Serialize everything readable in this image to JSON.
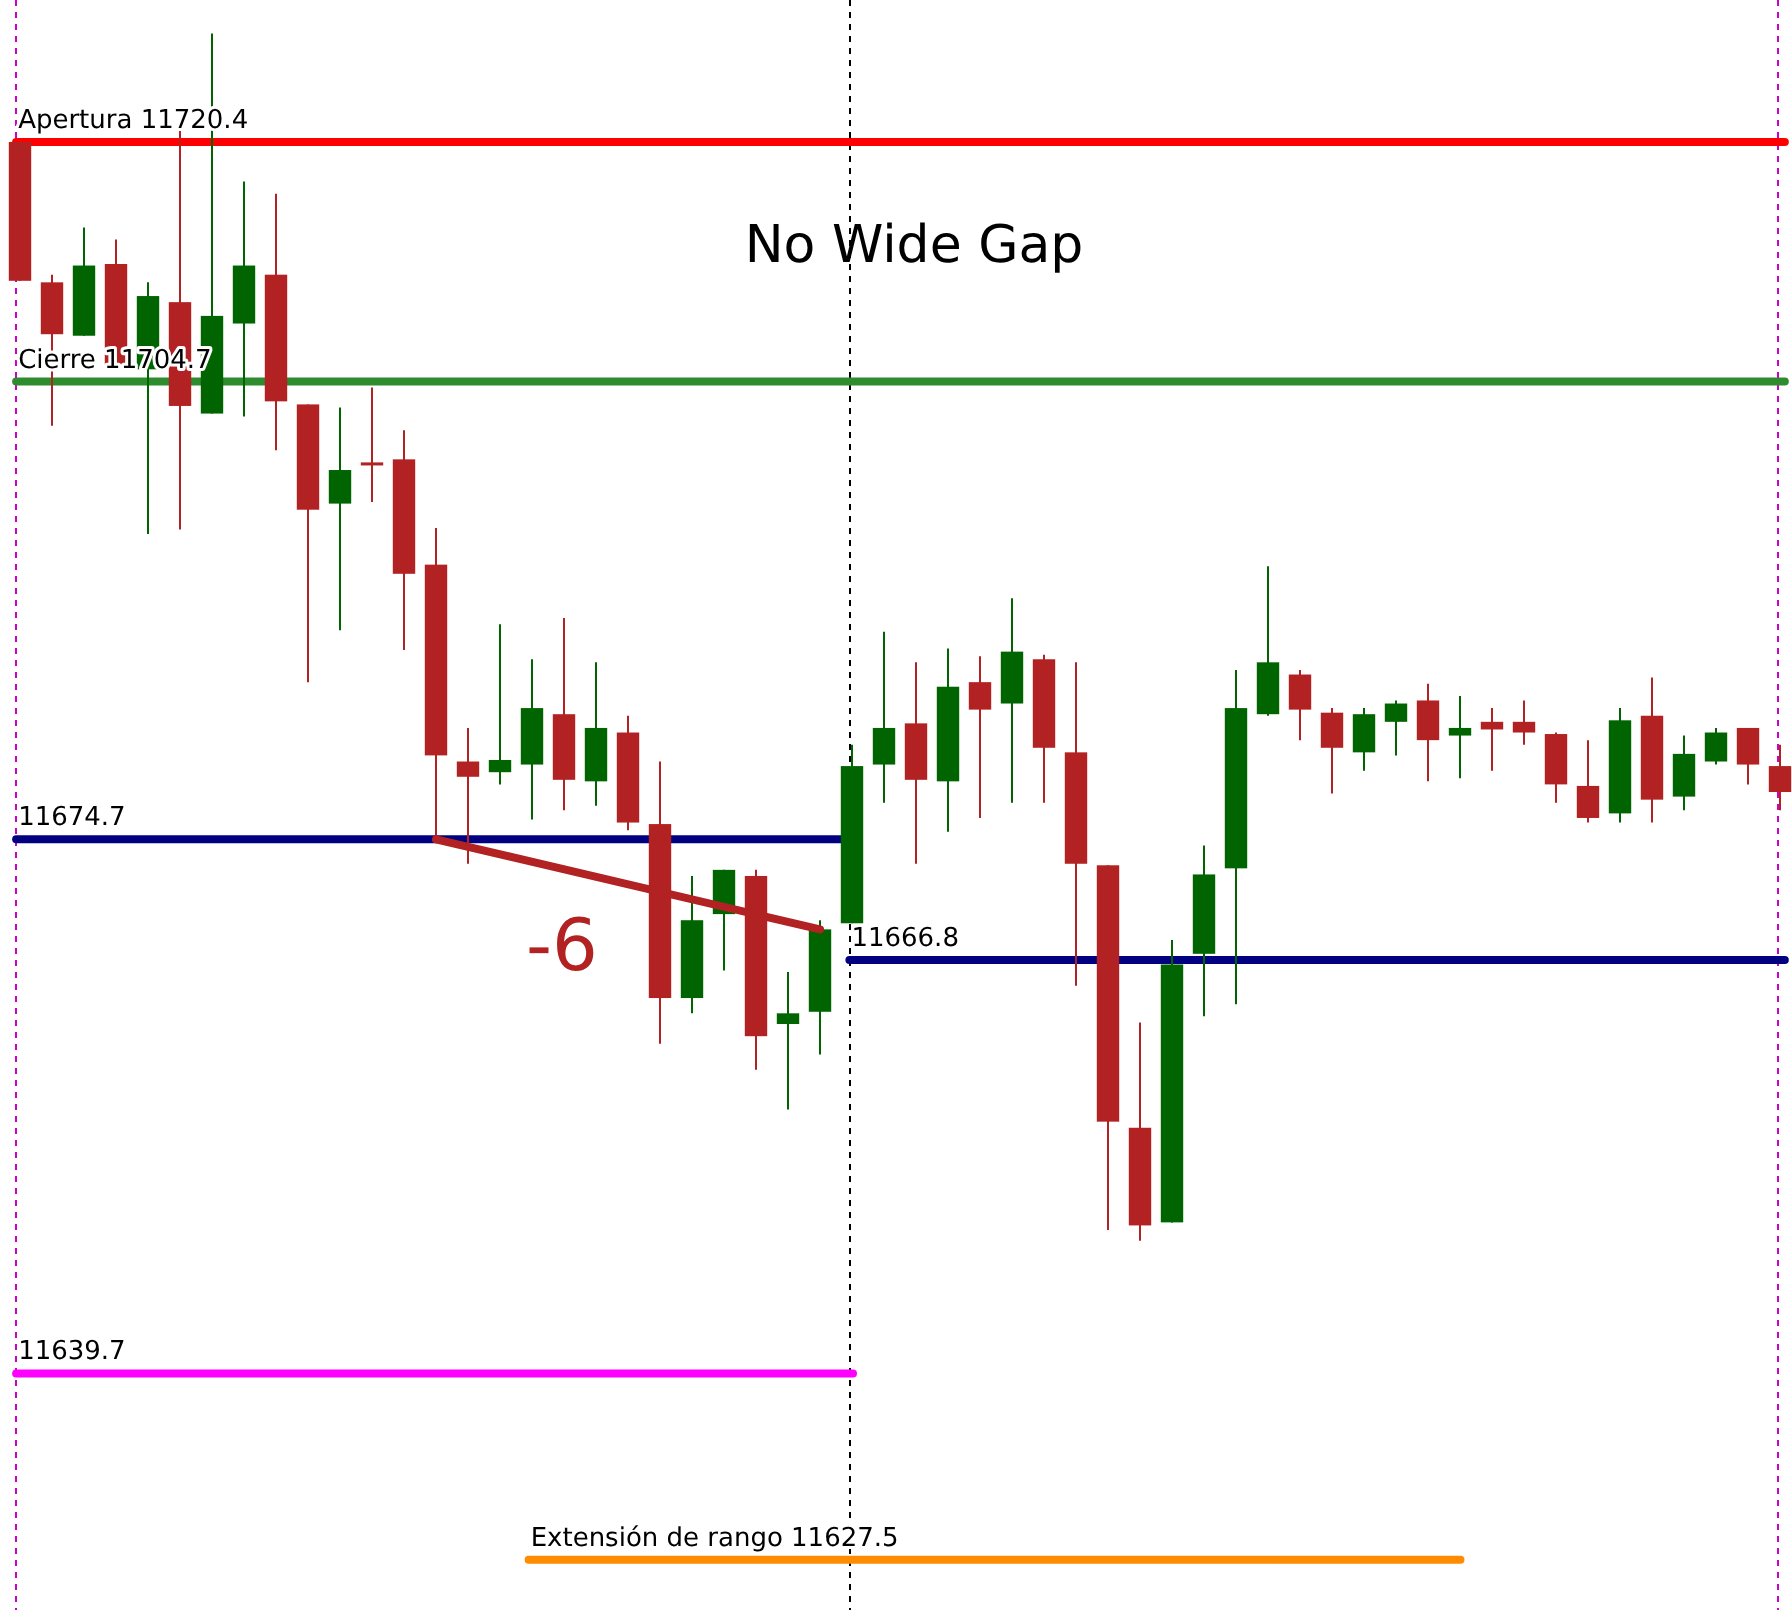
{
  "chart_data": {
    "type": "candlestick",
    "title": "No Wide Gap",
    "categories": [
      null,
      null,
      null,
      null,
      null,
      null,
      null,
      null,
      null,
      null,
      null,
      null,
      null,
      null,
      null,
      null,
      null,
      null,
      null,
      null,
      null,
      null,
      null,
      null,
      null,
      null,
      null,
      null,
      null,
      null,
      null,
      null,
      null,
      null,
      null,
      null,
      null,
      null,
      null,
      null,
      null,
      null,
      null,
      null,
      null,
      null,
      null,
      null,
      null,
      null,
      null,
      null,
      null,
      null,
      null,
      null
    ],
    "ohlc": [
      [
        11720.4,
        11720.4,
        11711.3,
        11711.3
      ],
      [
        11711.2,
        11711.7,
        11701.8,
        11707.8
      ],
      [
        11707.7,
        11714.8,
        11707.7,
        11712.3
      ],
      [
        11712.4,
        11714.0,
        11705.8,
        11705.8
      ],
      [
        11705.5,
        11711.2,
        11694.7,
        11710.3
      ],
      [
        11709.9,
        11721.2,
        11695.0,
        11703.1
      ],
      [
        11702.6,
        11727.5,
        11702.6,
        11709.0
      ],
      [
        11708.5,
        11717.8,
        11702.4,
        11712.3
      ],
      [
        11711.7,
        11717.0,
        11700.2,
        11703.4
      ],
      [
        11703.2,
        11703.2,
        11685.0,
        11696.3
      ],
      [
        11696.7,
        11703.0,
        11688.4,
        11698.9
      ],
      [
        11699.4,
        11704.3,
        11696.8,
        11699.2
      ],
      [
        11699.6,
        11701.5,
        11687.1,
        11692.1
      ],
      [
        11692.7,
        11695.1,
        11674.7,
        11680.2
      ],
      [
        11679.8,
        11682.0,
        11673.1,
        11678.8
      ],
      [
        11679.1,
        11688.8,
        11678.3,
        11679.9
      ],
      [
        11679.6,
        11686.5,
        11676.0,
        11683.3
      ],
      [
        11682.9,
        11689.2,
        11676.6,
        11678.6
      ],
      [
        11678.5,
        11686.3,
        11676.9,
        11682.0
      ],
      [
        11681.7,
        11682.8,
        11675.3,
        11675.8
      ],
      [
        11675.7,
        11679.8,
        11661.3,
        11664.3
      ],
      [
        11664.3,
        11672.3,
        11663.3,
        11669.4
      ],
      [
        11669.8,
        11672.7,
        11666.1,
        11672.7
      ],
      [
        11672.3,
        11672.7,
        11659.6,
        11661.8
      ],
      [
        11662.6,
        11666.0,
        11657.0,
        11663.3
      ],
      [
        11663.4,
        11669.4,
        11660.6,
        11668.8
      ],
      [
        11669.2,
        11680.9,
        11669.2,
        11679.5
      ],
      [
        11679.6,
        11688.3,
        11677.1,
        11682.0
      ],
      [
        11682.3,
        11686.3,
        11673.1,
        11678.6
      ],
      [
        11678.5,
        11687.2,
        11675.2,
        11684.7
      ],
      [
        11685.0,
        11686.7,
        11676.1,
        11683.2
      ],
      [
        11683.6,
        11690.5,
        11677.1,
        11687.0
      ],
      [
        11686.5,
        11686.8,
        11677.1,
        11680.7
      ],
      [
        11680.4,
        11686.3,
        11665.1,
        11673.1
      ],
      [
        11673.0,
        11673.0,
        11649.1,
        11656.2
      ],
      [
        11655.8,
        11662.7,
        11648.4,
        11649.4
      ],
      [
        11649.6,
        11668.1,
        11649.6,
        11666.5
      ],
      [
        11667.2,
        11674.3,
        11663.1,
        11672.4
      ],
      [
        11672.8,
        11685.8,
        11663.9,
        11683.3
      ],
      [
        11682.9,
        11692.6,
        11682.8,
        11686.3
      ],
      [
        11685.5,
        11685.8,
        11681.2,
        11683.2
      ],
      [
        11683.0,
        11683.3,
        11677.7,
        11680.7
      ],
      [
        11680.4,
        11683.3,
        11679.2,
        11682.9
      ],
      [
        11682.4,
        11683.8,
        11680.2,
        11683.6
      ],
      [
        11683.8,
        11684.9,
        11678.5,
        11681.2
      ],
      [
        11681.5,
        11684.1,
        11678.7,
        11682.0
      ],
      [
        11682.4,
        11683.3,
        11679.2,
        11681.9
      ],
      [
        11682.4,
        11683.8,
        11680.9,
        11681.7
      ],
      [
        11681.6,
        11681.7,
        11677.1,
        11678.3
      ],
      [
        11678.2,
        11681.2,
        11675.8,
        11676.1
      ],
      [
        11676.4,
        11683.3,
        11675.8,
        11682.5
      ],
      [
        11682.8,
        11685.3,
        11675.8,
        11677.3
      ],
      [
        11677.5,
        11681.5,
        11676.6,
        11680.3
      ],
      [
        11679.8,
        11682.0,
        11679.6,
        11681.7
      ],
      [
        11682.0,
        11682.0,
        11678.3,
        11679.6
      ],
      [
        11679.5,
        11680.9,
        11676.6,
        11677.8
      ]
    ],
    "ylim": [
      11624.2,
      11729.7
    ],
    "ref_lines": [
      {
        "axis": "y",
        "value": 11720.4,
        "label": "Apertura 11720.4",
        "color": "#ff0000"
      },
      {
        "axis": "y",
        "value": 11704.7,
        "label": "Cierre 11704.7",
        "color": "#2e8b2e"
      },
      {
        "axis": "y",
        "value": 11674.7,
        "label": "11674.7",
        "color": "#000080"
      },
      {
        "axis": "y",
        "value": 11666.8,
        "label": "11666.8",
        "color": "#000080"
      },
      {
        "axis": "y",
        "value": 11639.7,
        "label": "11639.7",
        "color": "#ff00ff"
      },
      {
        "axis": "y",
        "value": 11627.5,
        "label": "Extensión de rango 11627.5",
        "color": "#ff8c00"
      }
    ],
    "annotations": [
      "-6"
    ]
  }
}
